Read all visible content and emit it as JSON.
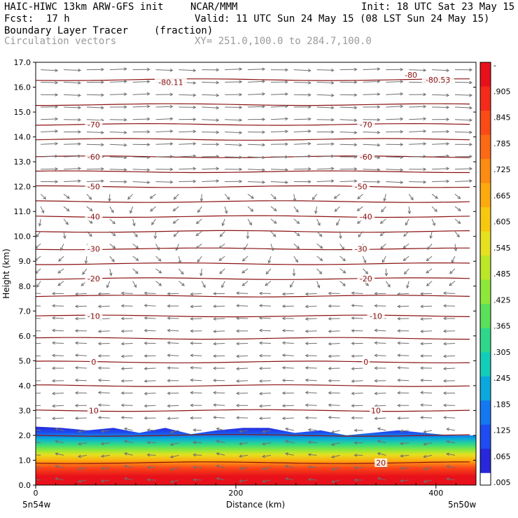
{
  "header": {
    "model": "HAIC-HIWC 13km ARW-GFS init",
    "org": "NCAR/MMM",
    "init": "Init: 18 UTC Sat 23 May 15",
    "fcst_label": "Fcst:",
    "fcst_value": "17 h",
    "valid": "Valid: 11 UTC Sun 24 May 15 (08 LST Sun 24 May 15)",
    "field": "Boundary Layer Tracer",
    "units": "(fraction)",
    "vectors": "Circulation vectors",
    "xy": "XY= 251.0,100.0 to 284.7,100.0"
  },
  "chart_data": {
    "type": "heatmap",
    "title": "Boundary Layer Tracer",
    "xlabel": "Distance (km)",
    "ylabel": "Height (km)",
    "xlim": [
      0,
      440
    ],
    "ylim": [
      0,
      17
    ],
    "x_ticks": [
      0,
      200,
      400
    ],
    "y_ticks": [
      "0.0",
      "1.0",
      "2.0",
      "3.0",
      "4.0",
      "5.0",
      "6.0",
      "7.0",
      "8.0",
      "9.0",
      "10.0",
      "11.0",
      "12.0",
      "13.0",
      "14.0",
      "15.0",
      "16.0",
      "17.0"
    ],
    "x_end_labels": {
      "left": "5n54w",
      "right": "5n50w"
    },
    "tracer_top_km": [
      2.35,
      2.3,
      2.2,
      2.3,
      2.1,
      2.3,
      2.05,
      2.2,
      2.3,
      2.3,
      2.1,
      2.2,
      2.0,
      2.1,
      2.2,
      2.1,
      2.0,
      2.0
    ],
    "colorbar": {
      "labels": [
        "-",
        ".905",
        ".845",
        ".785",
        ".725",
        ".665",
        ".605",
        ".545",
        ".485",
        ".425",
        ".365",
        ".305",
        ".245",
        ".185",
        ".125",
        ".065",
        ".005"
      ],
      "colors": [
        "#e8101a",
        "#f42a1a",
        "#fa4a18",
        "#fc6a16",
        "#fd8c12",
        "#fdaa10",
        "#f8c810",
        "#e6e020",
        "#bce628",
        "#8ee83a",
        "#5ce05a",
        "#2ed88a",
        "#14cdb8",
        "#0aa8dc",
        "#1478f0",
        "#1e4cf0",
        "#2828d8"
      ]
    },
    "isotherms": [
      {
        "label": "-80.11",
        "y": 16.2,
        "label_x": 135
      },
      {
        "label": "-80.53",
        "y": 16.3,
        "label_x": 402
      },
      {
        "label": "-80",
        "y": 16.5,
        "label_x": 375
      },
      {
        "label": "-70",
        "y": 14.5,
        "label_x": 58
      },
      {
        "label": "-70",
        "y": 14.5,
        "label_x": 330
      },
      {
        "label": "-60",
        "y": 13.2,
        "label_x": 58
      },
      {
        "label": "-60",
        "y": 13.2,
        "label_x": 330
      },
      {
        "label": "-50",
        "y": 12.0,
        "label_x": 58
      },
      {
        "label": "-50",
        "y": 12.0,
        "label_x": 325
      },
      {
        "label": "-40",
        "y": 10.8,
        "label_x": 58
      },
      {
        "label": "-40",
        "y": 10.8,
        "label_x": 330
      },
      {
        "label": "-30",
        "y": 9.5,
        "label_x": 58
      },
      {
        "label": "-30",
        "y": 9.5,
        "label_x": 325
      },
      {
        "label": "-20",
        "y": 8.3,
        "label_x": 58
      },
      {
        "label": "-20",
        "y": 8.3,
        "label_x": 330
      },
      {
        "label": "-10",
        "y": 6.8,
        "label_x": 58
      },
      {
        "label": "-10",
        "y": 6.8,
        "label_x": 340
      },
      {
        "label": "0",
        "y": 4.95,
        "label_x": 58
      },
      {
        "label": "0",
        "y": 4.95,
        "label_x": 330
      },
      {
        "label": "10",
        "y": 3.0,
        "label_x": 58
      },
      {
        "label": "10",
        "y": 3.0,
        "label_x": 340
      },
      {
        "label": "20",
        "y": 0.9,
        "label_x": 345
      }
    ],
    "isotherm_lines_km": [
      16.3,
      15.3,
      14.5,
      13.9,
      13.2,
      12.6,
      12.0,
      11.4,
      10.8,
      10.2,
      9.5,
      8.9,
      8.3,
      7.6,
      6.8,
      5.9,
      4.95,
      4.0,
      3.0,
      2.0,
      0.9
    ],
    "arrow_color": "#707070",
    "isotherm_color": "#8b1010"
  }
}
